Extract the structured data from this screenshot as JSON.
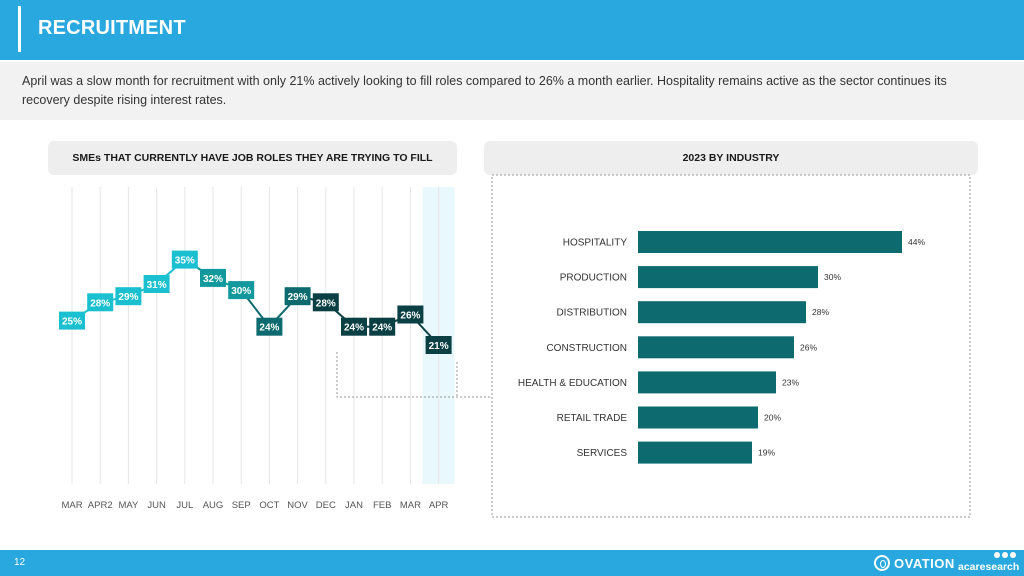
{
  "header": {
    "title": "RECRUITMENT"
  },
  "intro": {
    "text": "April was a slow month for recruitment with only 21% actively looking to fill roles compared to 26% a month earlier. Hospitality remains active as the sector continues its recovery despite rising interest rates."
  },
  "left_panel": {
    "title": "SMEs THAT CURRENTLY HAVE JOB ROLES THEY ARE TRYING TO FILL"
  },
  "right_panel": {
    "title": "2023 BY INDUSTRY"
  },
  "footer": {
    "page_number": "12",
    "logo_ovation": "OVATION",
    "logo_aca": "acaresearch"
  },
  "colors": {
    "early": "#1bc0d0",
    "mid": "#12999e",
    "late": "#0d6b70",
    "recent": "#0a3f44",
    "bar": "#0d6b70",
    "highlight": "#e9f8fd"
  },
  "chart_data": [
    {
      "type": "line",
      "title": "SMEs THAT CURRENTLY HAVE JOB ROLES THEY ARE TRYING TO FILL",
      "categories": [
        "MAR",
        "APR2",
        "MAY",
        "JUN",
        "JUL",
        "AUG",
        "SEP",
        "OCT",
        "NOV",
        "DEC",
        "JAN",
        "FEB",
        "MAR",
        "APR"
      ],
      "values": [
        25,
        28,
        29,
        31,
        35,
        32,
        30,
        24,
        29,
        28,
        24,
        24,
        26,
        21
      ],
      "labels": [
        "25%",
        "28%",
        "29%",
        "31%",
        "35%",
        "32%",
        "30%",
        "24%",
        "29%",
        "28%",
        "24%",
        "24%",
        "26%",
        "21%"
      ],
      "highlight_category": "APR",
      "grid": "vertical"
    },
    {
      "type": "bar",
      "orientation": "horizontal",
      "title": "2023 BY INDUSTRY",
      "categories": [
        "HOSPITALITY",
        "PRODUCTION",
        "DISTRIBUTION",
        "CONSTRUCTION",
        "HEALTH & EDUCATION",
        "RETAIL TRADE",
        "SERVICES"
      ],
      "values": [
        44,
        30,
        28,
        26,
        23,
        20,
        19
      ],
      "labels": [
        "44%",
        "30%",
        "28%",
        "26%",
        "23%",
        "20%",
        "19%"
      ],
      "xlim": [
        0,
        46
      ]
    }
  ]
}
